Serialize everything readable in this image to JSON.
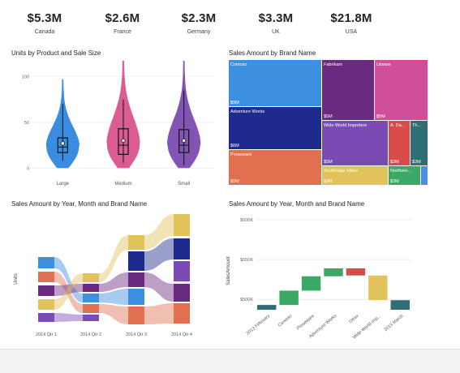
{
  "kpis": [
    {
      "value": "$5.3M",
      "label": "Canada"
    },
    {
      "value": "$2.6M",
      "label": "France"
    },
    {
      "value": "$2.3M",
      "label": "Germany"
    },
    {
      "value": "$3.3M",
      "label": "UK"
    },
    {
      "value": "$21.8M",
      "label": "USA"
    }
  ],
  "visuals": {
    "violin_title": "Units by Product and Sale Size",
    "treemap_title": "Sales Amount by Brand Name",
    "ribbon_title": "Sales Amount by Year, Month and Brand Name",
    "waterfall_title": "Sales Amount by Year, Month and Brand Name"
  },
  "chart_data": [
    {
      "type": "violin",
      "title": "Units by Product and Sale Size",
      "categories": [
        "Large",
        "Medium",
        "Small"
      ],
      "colors": [
        "#2e86de",
        "#d9538a",
        "#7b4bb0"
      ],
      "y_ticks": [
        0,
        50,
        100
      ],
      "ylim": [
        -5,
        110
      ],
      "series": [
        {
          "name": "Large",
          "min": 8,
          "q1": 17,
          "median": 23,
          "q3": 33,
          "max": 70,
          "mean": 27,
          "top": 97
        },
        {
          "name": "Medium",
          "min": 6,
          "q1": 15,
          "median": 25,
          "q3": 43,
          "max": 75,
          "mean": 30,
          "top": 125
        },
        {
          "name": "Small",
          "min": 3,
          "q1": 17,
          "median": 25,
          "q3": 42,
          "max": 85,
          "mean": 30,
          "top": 118
        }
      ]
    },
    {
      "type": "treemap",
      "title": "Sales Amount by Brand Name",
      "items": [
        {
          "name": "Contoso",
          "value_label": "$9M",
          "color": "#3d8fe0"
        },
        {
          "name": "Adventure Works",
          "value_label": "$6M",
          "color": "#1f2a8f"
        },
        {
          "name": "Proseware",
          "value_label": "$5M",
          "color": "#e0704f"
        },
        {
          "name": "Fabrikam",
          "value_label": "$5M",
          "color": "#6a2a80"
        },
        {
          "name": "Litware",
          "value_label": "$5M",
          "color": "#d04e9a"
        },
        {
          "name": "Wide World Importers",
          "value_label": "$5M",
          "color": "#7a4bb5"
        },
        {
          "name": "A. Da...",
          "value_label": "$3M",
          "color": "#d94b4b"
        },
        {
          "name": "Th...",
          "value_label": "$3M",
          "color": "#2e6e74"
        },
        {
          "name": "Southridge Video",
          "value_label": "$3M",
          "color": "#e2c25a"
        },
        {
          "name": "Northwin...",
          "value_label": "$3M",
          "color": "#3ba865"
        },
        {
          "name": "",
          "value_label": "",
          "color": "#4a90e2"
        }
      ]
    },
    {
      "type": "ribbon",
      "title": "Sales Amount by Year, Month and Brand Name",
      "ylabel": "Units",
      "categories": [
        "2014 Qtr 1",
        "2014 Qtr 2",
        "2014 Qtr 3",
        "2014 Qtr 4"
      ],
      "series_colors": [
        "#3d8fe0",
        "#e0704f",
        "#6a2a80",
        "#d04e9a",
        "#e2c25a",
        "#1f2a8f",
        "#7a4bb5"
      ]
    },
    {
      "type": "waterfall",
      "title": "Sales Amount by Year, Month and Brand Name",
      "ylabel": "SalesAmount",
      "y_ticks": [
        "$500K",
        "$550K",
        "$600K"
      ],
      "y_tick_values": [
        500,
        550,
        600
      ],
      "ylim": [
        487,
        605
      ],
      "categories": [
        "2013 February",
        "Contoso",
        "Proseware",
        "Adventure Works",
        "Other",
        "Wide World Imp...",
        "2013 March"
      ],
      "bars": [
        {
          "start": 487,
          "end": 493,
          "color": "#2e6e74"
        },
        {
          "start": 493,
          "end": 511,
          "color": "#3ba865"
        },
        {
          "start": 511,
          "end": 529,
          "color": "#3ba865"
        },
        {
          "start": 529,
          "end": 539,
          "color": "#3ba865"
        },
        {
          "start": 539,
          "end": 530,
          "color": "#d94b4b"
        },
        {
          "start": 530,
          "end": 499,
          "color": "#e2c25a"
        },
        {
          "start": 499,
          "end": 487,
          "color": "#2e6e74"
        }
      ]
    }
  ]
}
